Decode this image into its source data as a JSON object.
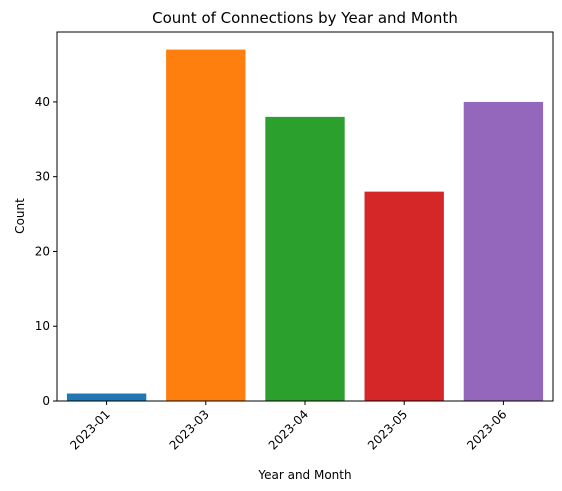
{
  "chart_data": {
    "type": "bar",
    "title": "Count of Connections by Year and Month",
    "xlabel": "Year and Month",
    "ylabel": "Count",
    "categories": [
      "2023-01",
      "2023-03",
      "2023-04",
      "2023-05",
      "2023-06"
    ],
    "values": [
      1,
      47,
      38,
      28,
      40
    ],
    "colors": [
      "#1f77b4",
      "#ff7f0e",
      "#2ca02c",
      "#d62728",
      "#9467bd"
    ],
    "ylim": [
      0,
      49.35
    ],
    "yticks": [
      0,
      10,
      20,
      30,
      40
    ],
    "grid": false,
    "legend": "none"
  }
}
